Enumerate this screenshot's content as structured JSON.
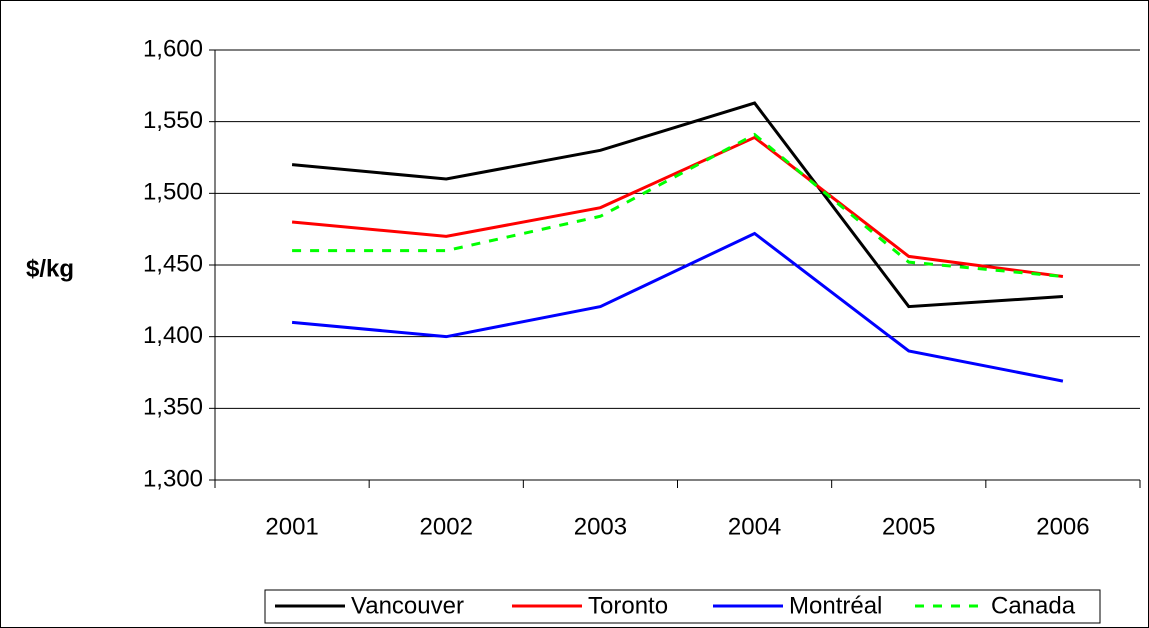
{
  "chart_data": {
    "type": "line",
    "y_label": "$/kg",
    "categories": [
      "2001",
      "2002",
      "2003",
      "2004",
      "2005",
      "2006"
    ],
    "series": [
      {
        "name": "Vancouver",
        "color": "#000000",
        "style": "solid",
        "values": [
          1520,
          1510,
          1530,
          1563,
          1421,
          1428
        ]
      },
      {
        "name": "Toronto",
        "color": "#ff0000",
        "style": "solid",
        "values": [
          1480,
          1470,
          1490,
          1539,
          1456,
          1442
        ]
      },
      {
        "name": "Montréal",
        "color": "#0000ff",
        "style": "solid",
        "values": [
          1410,
          1400,
          1421,
          1472,
          1390,
          1369
        ]
      },
      {
        "name": "Canada",
        "color": "#00ff00",
        "style": "dashed",
        "values": [
          1460,
          1460,
          1484,
          1541,
          1452,
          1442
        ]
      }
    ],
    "ylim": [
      1300,
      1600
    ],
    "yticks": [
      {
        "value": 1300,
        "label": "1,300"
      },
      {
        "value": 1350,
        "label": "1,350"
      },
      {
        "value": 1400,
        "label": "1,400"
      },
      {
        "value": 1450,
        "label": "1,450"
      },
      {
        "value": 1500,
        "label": "1,500"
      },
      {
        "value": 1550,
        "label": "1,550"
      },
      {
        "value": 1600,
        "label": "1,600"
      }
    ],
    "grid": true,
    "legend": "bottom"
  }
}
